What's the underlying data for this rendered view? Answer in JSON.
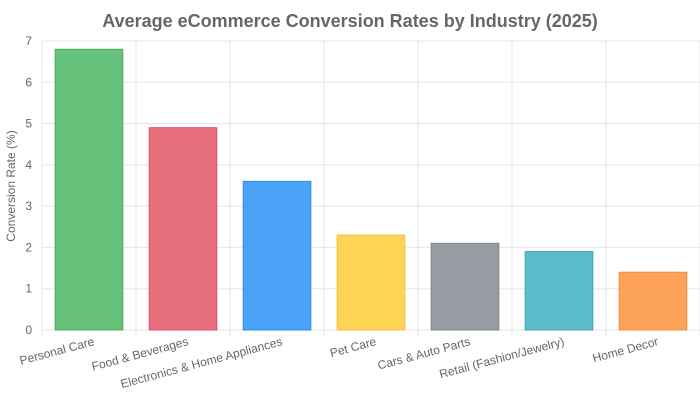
{
  "chart_data": {
    "type": "bar",
    "title": "Average eCommerce Conversion Rates by Industry (2025)",
    "xlabel": "",
    "ylabel": "Conversion Rate (%)",
    "ylim": [
      0,
      7
    ],
    "yticks": [
      "0",
      "1",
      "2",
      "3",
      "4",
      "5",
      "6",
      "7"
    ],
    "categories": [
      "Personal Care",
      "Food & Beverages",
      "Electronics & Home Appliances",
      "Pet Care",
      "Cars & Auto Parts",
      "Retail (Fashion/Jewelry)",
      "Home Decor"
    ],
    "values": [
      6.8,
      4.9,
      3.6,
      2.3,
      2.1,
      1.9,
      1.4
    ],
    "colors": [
      "#66c17a",
      "#e8707e",
      "#4aa3f8",
      "#ffd454",
      "#979ca3",
      "#5cbccc",
      "#fda359"
    ],
    "borders": [
      "#4fae62",
      "#d9566a",
      "#2f8fe6",
      "#f2c23c",
      "#7e848c",
      "#3ea7b8",
      "#f28c3c"
    ],
    "grid": true,
    "legend": "none"
  }
}
